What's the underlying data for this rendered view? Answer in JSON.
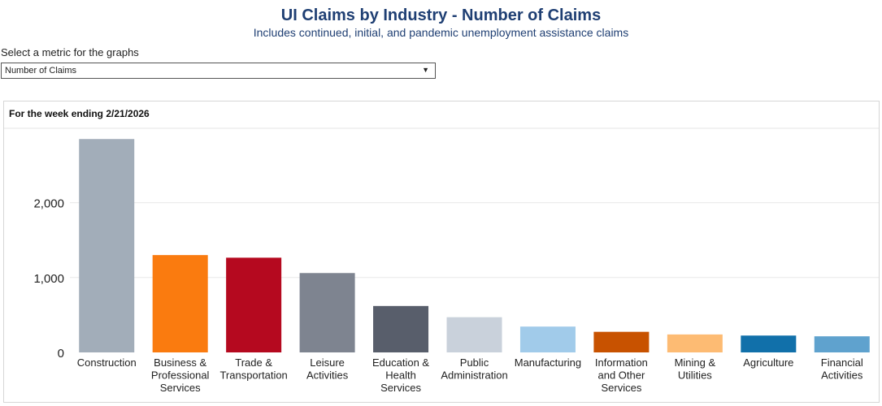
{
  "header": {
    "title": "UI Claims by Industry - Number of Claims",
    "subtitle": "Includes continued, initial, and pandemic unemployment assistance claims"
  },
  "metric_select": {
    "label": "Select a metric for the graphs",
    "value": "Number of Claims"
  },
  "chart_data": {
    "type": "bar",
    "title": "For the week ending 2/21/2026",
    "categories": [
      [
        "Construction"
      ],
      [
        "Business &",
        "Professional",
        "Services"
      ],
      [
        "Trade &",
        "Transportation"
      ],
      [
        "Leisure",
        "Activities"
      ],
      [
        "Education &",
        "Health",
        "Services"
      ],
      [
        "Public",
        "Administration"
      ],
      [
        "Manufacturing"
      ],
      [
        "Information",
        "and Other",
        "Services"
      ],
      [
        "Mining &",
        "Utilities"
      ],
      [
        "Agriculture"
      ],
      [
        "Financial",
        "Activities"
      ]
    ],
    "values": [
      2850,
      1300,
      1265,
      1060,
      620,
      470,
      345,
      275,
      240,
      225,
      215
    ],
    "colors": [
      "#a2adb9",
      "#fa7b0f",
      "#b5091f",
      "#7e8490",
      "#585e6b",
      "#c9d1db",
      "#a1cbea",
      "#c85200",
      "#fdbb73",
      "#1170aa",
      "#5fa2ce"
    ],
    "yticks": [
      0,
      1000,
      2000
    ],
    "ytick_labels": [
      "0",
      "1,000",
      "2,000"
    ],
    "ylim": [
      0,
      2950
    ],
    "grid": true,
    "xlabel": "",
    "ylabel": ""
  }
}
